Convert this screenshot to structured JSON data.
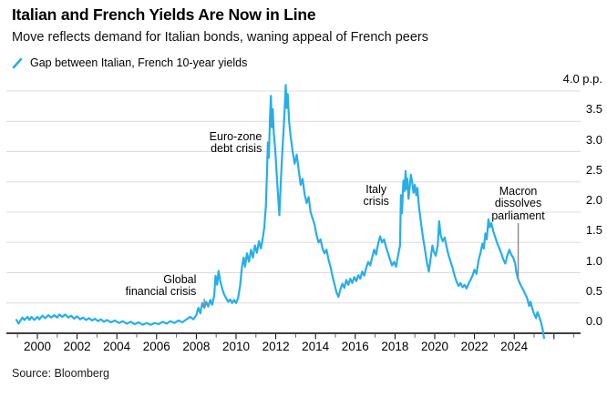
{
  "header": {
    "title": "Italian and French Yields Are Now in Line",
    "subtitle": "Move reflects demand for Italian bonds, waning appeal of French peers"
  },
  "legend": {
    "label": "Gap between Italian, French 10-year yields"
  },
  "source": {
    "text": "Source: Bloomberg"
  },
  "colors": {
    "line": "#27AEE9",
    "grid": "#DCDCDC",
    "axis": "#000000",
    "minor_tick": "#666666",
    "pointer": "#8C8C8C"
  },
  "chart_data": {
    "type": "line",
    "title": "Italian and French Yields Are Now in Line",
    "subtitle": "Move reflects demand for Italian bonds, waning appeal of French peers",
    "unit": "p.p.",
    "xlabel": "",
    "ylabel": "Gap between Italian and French 10-year yields (percentage points)",
    "xlim": [
      1998.45,
      2027.35
    ],
    "ylim": [
      -0.2,
      4.35
    ],
    "grid": "horizontal",
    "legend_position": "top-left",
    "y_axis": {
      "side": "right",
      "ticks": [
        {
          "value": 4.0,
          "label": "4.0 p.p."
        },
        {
          "value": 3.5,
          "label": "3.5"
        },
        {
          "value": 3.0,
          "label": "3.0"
        },
        {
          "value": 2.5,
          "label": "2.5"
        },
        {
          "value": 2.0,
          "label": "2.0"
        },
        {
          "value": 1.5,
          "label": "1.5"
        },
        {
          "value": 1.0,
          "label": "1.0"
        },
        {
          "value": 0.5,
          "label": "0.5"
        },
        {
          "value": 0.0,
          "label": "0.0"
        }
      ]
    },
    "x_axis": {
      "label_ticks": [
        2000,
        2002,
        2004,
        2006,
        2008,
        2010,
        2012,
        2014,
        2016,
        2018,
        2020,
        2022,
        2024
      ],
      "minor_tick_every_year": true
    },
    "annotations": [
      {
        "lines": [
          "Global",
          "financial crisis"
        ],
        "align": "right",
        "anchor_year": 2008.0,
        "anchor_value": 0.98,
        "pointer": {
          "year": 2008.4,
          "from": 0.57,
          "to": 0.43
        }
      },
      {
        "lines": [
          "Euro-zone",
          "debt crisis"
        ],
        "align": "right",
        "anchor_year": 2011.3,
        "anchor_value": 3.34
      },
      {
        "lines": [
          "Italy",
          "crisis"
        ],
        "align": "center",
        "anchor_year": 2017.05,
        "anchor_value": 2.47
      },
      {
        "lines": [
          "Macron",
          "dissolves",
          "parliament"
        ],
        "align": "center",
        "anchor_year": 2024.2,
        "anchor_value": 2.44,
        "pointer": {
          "year": 2024.2,
          "from": 1.82,
          "to": 0.89
        }
      }
    ],
    "series": [
      {
        "name": "Gap between Italian, French 10-year yields",
        "points": [
          [
            1998.95,
            0.22
          ],
          [
            1999.05,
            0.16
          ],
          [
            1999.15,
            0.21
          ],
          [
            1999.25,
            0.26
          ],
          [
            1999.35,
            0.22
          ],
          [
            1999.5,
            0.27
          ],
          [
            1999.6,
            0.22
          ],
          [
            1999.7,
            0.27
          ],
          [
            1999.85,
            0.22
          ],
          [
            2000.0,
            0.27
          ],
          [
            2000.1,
            0.23
          ],
          [
            2000.25,
            0.29
          ],
          [
            2000.4,
            0.25
          ],
          [
            2000.55,
            0.3
          ],
          [
            2000.7,
            0.26
          ],
          [
            2000.85,
            0.3
          ],
          [
            2001.0,
            0.26
          ],
          [
            2001.1,
            0.31
          ],
          [
            2001.25,
            0.27
          ],
          [
            2001.4,
            0.31
          ],
          [
            2001.55,
            0.26
          ],
          [
            2001.7,
            0.29
          ],
          [
            2001.85,
            0.24
          ],
          [
            2002.0,
            0.28
          ],
          [
            2002.15,
            0.23
          ],
          [
            2002.3,
            0.26
          ],
          [
            2002.45,
            0.22
          ],
          [
            2002.6,
            0.25
          ],
          [
            2002.75,
            0.21
          ],
          [
            2002.9,
            0.24
          ],
          [
            2003.05,
            0.2
          ],
          [
            2003.2,
            0.23
          ],
          [
            2003.35,
            0.19
          ],
          [
            2003.5,
            0.22
          ],
          [
            2003.7,
            0.18
          ],
          [
            2003.9,
            0.21
          ],
          [
            2004.1,
            0.17
          ],
          [
            2004.3,
            0.2
          ],
          [
            2004.5,
            0.16
          ],
          [
            2004.7,
            0.19
          ],
          [
            2004.9,
            0.15
          ],
          [
            2005.1,
            0.18
          ],
          [
            2005.3,
            0.14
          ],
          [
            2005.5,
            0.17
          ],
          [
            2005.7,
            0.14
          ],
          [
            2005.9,
            0.17
          ],
          [
            2006.1,
            0.15
          ],
          [
            2006.3,
            0.19
          ],
          [
            2006.5,
            0.16
          ],
          [
            2006.7,
            0.2
          ],
          [
            2006.9,
            0.17
          ],
          [
            2007.1,
            0.21
          ],
          [
            2007.3,
            0.18
          ],
          [
            2007.5,
            0.23
          ],
          [
            2007.7,
            0.27
          ],
          [
            2007.85,
            0.23
          ],
          [
            2008.0,
            0.3
          ],
          [
            2008.1,
            0.42
          ],
          [
            2008.2,
            0.33
          ],
          [
            2008.3,
            0.5
          ],
          [
            2008.4,
            0.42
          ],
          [
            2008.5,
            0.52
          ],
          [
            2008.6,
            0.44
          ],
          [
            2008.7,
            0.55
          ],
          [
            2008.8,
            0.47
          ],
          [
            2008.9,
            0.62
          ],
          [
            2008.97,
            0.95
          ],
          [
            2009.05,
            0.8
          ],
          [
            2009.12,
            1.03
          ],
          [
            2009.2,
            0.87
          ],
          [
            2009.3,
            0.74
          ],
          [
            2009.4,
            0.64
          ],
          [
            2009.5,
            0.58
          ],
          [
            2009.6,
            0.52
          ],
          [
            2009.7,
            0.56
          ],
          [
            2009.8,
            0.5
          ],
          [
            2009.9,
            0.55
          ],
          [
            2010.0,
            0.5
          ],
          [
            2010.1,
            0.58
          ],
          [
            2010.2,
            0.78
          ],
          [
            2010.3,
            1.1
          ],
          [
            2010.38,
            1.25
          ],
          [
            2010.45,
            1.1
          ],
          [
            2010.55,
            1.32
          ],
          [
            2010.65,
            1.18
          ],
          [
            2010.75,
            1.38
          ],
          [
            2010.85,
            1.25
          ],
          [
            2010.95,
            1.45
          ],
          [
            2011.05,
            1.33
          ],
          [
            2011.15,
            1.52
          ],
          [
            2011.25,
            1.4
          ],
          [
            2011.35,
            1.58
          ],
          [
            2011.42,
            1.75
          ],
          [
            2011.5,
            2.1
          ],
          [
            2011.55,
            2.6
          ],
          [
            2011.6,
            3.15
          ],
          [
            2011.65,
            2.9
          ],
          [
            2011.7,
            3.5
          ],
          [
            2011.75,
            3.92
          ],
          [
            2011.8,
            3.4
          ],
          [
            2011.85,
            3.7
          ],
          [
            2011.9,
            3.3
          ],
          [
            2011.97,
            3.05
          ],
          [
            2012.05,
            2.6
          ],
          [
            2012.12,
            2.25
          ],
          [
            2012.18,
            1.95
          ],
          [
            2012.25,
            2.5
          ],
          [
            2012.32,
            2.95
          ],
          [
            2012.4,
            3.4
          ],
          [
            2012.45,
            3.72
          ],
          [
            2012.5,
            4.1
          ],
          [
            2012.55,
            3.72
          ],
          [
            2012.6,
            3.95
          ],
          [
            2012.67,
            3.5
          ],
          [
            2012.75,
            3.25
          ],
          [
            2012.85,
            3.0
          ],
          [
            2012.95,
            2.8
          ],
          [
            2013.05,
            2.95
          ],
          [
            2013.15,
            2.7
          ],
          [
            2013.25,
            2.45
          ],
          [
            2013.35,
            2.55
          ],
          [
            2013.45,
            2.3
          ],
          [
            2013.55,
            2.15
          ],
          [
            2013.65,
            2.25
          ],
          [
            2013.75,
            2.0
          ],
          [
            2013.85,
            1.9
          ],
          [
            2013.95,
            1.8
          ],
          [
            2014.05,
            1.62
          ],
          [
            2014.15,
            1.5
          ],
          [
            2014.25,
            1.55
          ],
          [
            2014.35,
            1.4
          ],
          [
            2014.45,
            1.32
          ],
          [
            2014.55,
            1.38
          ],
          [
            2014.65,
            1.22
          ],
          [
            2014.75,
            1.1
          ],
          [
            2014.85,
            0.95
          ],
          [
            2014.95,
            0.82
          ],
          [
            2015.05,
            0.68
          ],
          [
            2015.15,
            0.6
          ],
          [
            2015.25,
            0.72
          ],
          [
            2015.35,
            0.82
          ],
          [
            2015.45,
            0.75
          ],
          [
            2015.55,
            0.88
          ],
          [
            2015.65,
            0.8
          ],
          [
            2015.75,
            0.9
          ],
          [
            2015.85,
            0.83
          ],
          [
            2015.95,
            0.93
          ],
          [
            2016.05,
            0.86
          ],
          [
            2016.15,
            0.96
          ],
          [
            2016.25,
            0.9
          ],
          [
            2016.35,
            1.02
          ],
          [
            2016.45,
            0.95
          ],
          [
            2016.55,
            1.08
          ],
          [
            2016.65,
            1.18
          ],
          [
            2016.75,
            1.12
          ],
          [
            2016.85,
            1.25
          ],
          [
            2016.95,
            1.38
          ],
          [
            2017.05,
            1.3
          ],
          [
            2017.15,
            1.48
          ],
          [
            2017.25,
            1.6
          ],
          [
            2017.35,
            1.5
          ],
          [
            2017.45,
            1.55
          ],
          [
            2017.55,
            1.42
          ],
          [
            2017.65,
            1.32
          ],
          [
            2017.75,
            1.22
          ],
          [
            2017.85,
            1.12
          ],
          [
            2017.95,
            1.18
          ],
          [
            2018.05,
            1.1
          ],
          [
            2018.15,
            1.28
          ],
          [
            2018.25,
            1.45
          ],
          [
            2018.3,
            2.28
          ],
          [
            2018.35,
            1.98
          ],
          [
            2018.42,
            2.52
          ],
          [
            2018.48,
            2.35
          ],
          [
            2018.53,
            2.68
          ],
          [
            2018.58,
            2.38
          ],
          [
            2018.63,
            2.55
          ],
          [
            2018.68,
            2.22
          ],
          [
            2018.75,
            2.45
          ],
          [
            2018.8,
            2.62
          ],
          [
            2018.87,
            2.48
          ],
          [
            2018.93,
            2.32
          ],
          [
            2019.0,
            2.45
          ],
          [
            2019.07,
            2.28
          ],
          [
            2019.13,
            2.4
          ],
          [
            2019.2,
            2.1
          ],
          [
            2019.3,
            1.85
          ],
          [
            2019.4,
            1.6
          ],
          [
            2019.5,
            1.4
          ],
          [
            2019.6,
            1.18
          ],
          [
            2019.7,
            1.02
          ],
          [
            2019.8,
            1.25
          ],
          [
            2019.88,
            1.45
          ],
          [
            2019.95,
            1.35
          ],
          [
            2020.05,
            1.28
          ],
          [
            2020.15,
            1.45
          ],
          [
            2020.22,
            1.85
          ],
          [
            2020.3,
            1.62
          ],
          [
            2020.4,
            1.52
          ],
          [
            2020.5,
            1.58
          ],
          [
            2020.6,
            1.42
          ],
          [
            2020.7,
            1.28
          ],
          [
            2020.8,
            1.18
          ],
          [
            2020.9,
            1.08
          ],
          [
            2021.0,
            0.95
          ],
          [
            2021.1,
            0.85
          ],
          [
            2021.2,
            0.78
          ],
          [
            2021.3,
            0.83
          ],
          [
            2021.4,
            0.76
          ],
          [
            2021.5,
            0.8
          ],
          [
            2021.6,
            0.74
          ],
          [
            2021.7,
            0.82
          ],
          [
            2021.8,
            0.88
          ],
          [
            2021.9,
            0.95
          ],
          [
            2022.0,
            1.05
          ],
          [
            2022.1,
            0.98
          ],
          [
            2022.2,
            1.2
          ],
          [
            2022.3,
            1.32
          ],
          [
            2022.4,
            1.48
          ],
          [
            2022.47,
            1.4
          ],
          [
            2022.55,
            1.65
          ],
          [
            2022.62,
            1.55
          ],
          [
            2022.7,
            1.88
          ],
          [
            2022.77,
            1.75
          ],
          [
            2022.85,
            1.82
          ],
          [
            2022.95,
            1.68
          ],
          [
            2023.05,
            1.58
          ],
          [
            2023.15,
            1.48
          ],
          [
            2023.25,
            1.4
          ],
          [
            2023.35,
            1.32
          ],
          [
            2023.45,
            1.22
          ],
          [
            2023.55,
            1.15
          ],
          [
            2023.65,
            1.28
          ],
          [
            2023.75,
            1.38
          ],
          [
            2023.85,
            1.3
          ],
          [
            2023.95,
            1.25
          ],
          [
            2024.05,
            1.15
          ],
          [
            2024.1,
            1.02
          ],
          [
            2024.17,
            0.92
          ],
          [
            2024.25,
            0.85
          ],
          [
            2024.35,
            0.78
          ],
          [
            2024.45,
            0.72
          ],
          [
            2024.55,
            0.65
          ],
          [
            2024.65,
            0.58
          ],
          [
            2024.75,
            0.45
          ],
          [
            2024.82,
            0.52
          ],
          [
            2024.9,
            0.42
          ],
          [
            2025.0,
            0.32
          ],
          [
            2025.1,
            0.25
          ],
          [
            2025.17,
            0.35
          ],
          [
            2025.25,
            0.28
          ],
          [
            2025.35,
            0.18
          ],
          [
            2025.42,
            0.08
          ],
          [
            2025.5,
            -0.08
          ]
        ]
      }
    ]
  }
}
